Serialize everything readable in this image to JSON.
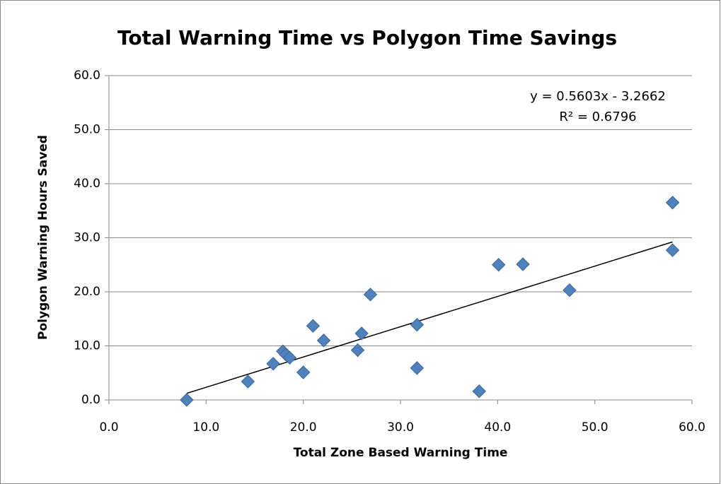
{
  "chart_data": {
    "type": "scatter",
    "title": "Total Warning Time vs Polygon Time Savings",
    "x_label": "Total Zone Based Warning Time",
    "y_label": "Polygon Warning Hours Saved",
    "series": [
      {
        "name": "Polygon Warning Hours Saved",
        "color": "#4f81bd",
        "x": [
          8.0,
          14.3,
          16.9,
          17.9,
          18.2,
          18.6,
          20.0,
          21.0,
          22.1,
          25.6,
          26.0,
          26.9,
          31.7,
          31.7,
          38.1,
          40.1,
          42.6,
          47.4,
          58.0,
          58.0
        ],
        "values": [
          0.0,
          3.4,
          6.7,
          9.0,
          8.4,
          7.8,
          5.1,
          13.7,
          11.0,
          9.2,
          12.3,
          19.5,
          13.9,
          5.9,
          1.6,
          25.0,
          25.1,
          20.3,
          36.5,
          27.7
        ]
      }
    ],
    "trendline": {
      "equation": "y = 0.5603x - 3.2662",
      "r_squared": "R² = 0.6796",
      "slope": 0.5603,
      "intercept": -3.2662,
      "color": "#000000"
    },
    "xlim": [
      0,
      60
    ],
    "ylim": [
      0,
      60
    ],
    "xticks": [
      {
        "value": 0,
        "label": "0.0"
      },
      {
        "value": 10,
        "label": "10.0"
      },
      {
        "value": 20,
        "label": "20.0"
      },
      {
        "value": 30,
        "label": "30.0"
      },
      {
        "value": 40,
        "label": "40.0"
      },
      {
        "value": 50,
        "label": "50.0"
      },
      {
        "value": 60,
        "label": "60.0"
      }
    ],
    "yticks": [
      {
        "value": 0,
        "label": "0.0"
      },
      {
        "value": 10,
        "label": "10.0"
      },
      {
        "value": 20,
        "label": "20.0"
      },
      {
        "value": 30,
        "label": "30.0"
      },
      {
        "value": 40,
        "label": "40.0"
      },
      {
        "value": 50,
        "label": "50.0"
      },
      {
        "value": 60,
        "label": "60.0"
      }
    ],
    "grid": true
  }
}
